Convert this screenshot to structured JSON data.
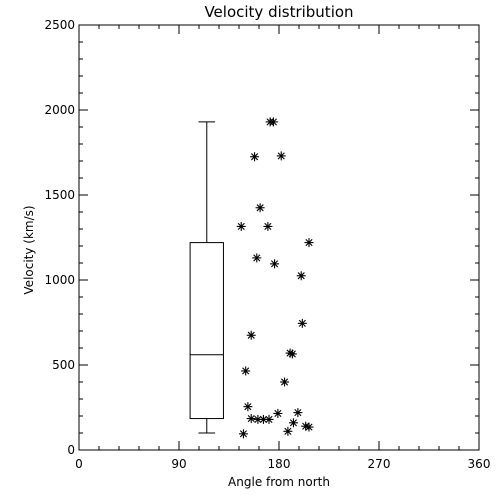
{
  "chart_data": {
    "type": "scatter",
    "title": "Velocity distribution",
    "xlabel": "Angle from north",
    "ylabel": "Velocity (km/s)",
    "xlim": [
      0,
      360
    ],
    "ylim": [
      0,
      2500
    ],
    "xticks": [
      0,
      90,
      180,
      270,
      360
    ],
    "yticks": [
      0,
      500,
      1000,
      1500,
      2000,
      2500
    ],
    "grid": false,
    "boxplot": {
      "x_range": [
        100,
        130
      ],
      "min": 100,
      "q1": 185,
      "median": 560,
      "q3": 1220,
      "max": 1930
    },
    "points": [
      {
        "x": 172,
        "y": 1930
      },
      {
        "x": 175,
        "y": 1930
      },
      {
        "x": 158,
        "y": 1725
      },
      {
        "x": 182,
        "y": 1730
      },
      {
        "x": 163,
        "y": 1425
      },
      {
        "x": 146,
        "y": 1315
      },
      {
        "x": 170,
        "y": 1315
      },
      {
        "x": 207,
        "y": 1220
      },
      {
        "x": 160,
        "y": 1130
      },
      {
        "x": 176,
        "y": 1095
      },
      {
        "x": 200,
        "y": 1025
      },
      {
        "x": 201,
        "y": 745
      },
      {
        "x": 155,
        "y": 675
      },
      {
        "x": 190,
        "y": 570
      },
      {
        "x": 192,
        "y": 565
      },
      {
        "x": 150,
        "y": 465
      },
      {
        "x": 185,
        "y": 400
      },
      {
        "x": 152,
        "y": 255
      },
      {
        "x": 179,
        "y": 215
      },
      {
        "x": 197,
        "y": 220
      },
      {
        "x": 155,
        "y": 185
      },
      {
        "x": 161,
        "y": 180
      },
      {
        "x": 166,
        "y": 180
      },
      {
        "x": 171,
        "y": 180
      },
      {
        "x": 193,
        "y": 160
      },
      {
        "x": 204,
        "y": 140
      },
      {
        "x": 207,
        "y": 135
      },
      {
        "x": 188,
        "y": 110
      },
      {
        "x": 148,
        "y": 95
      }
    ]
  }
}
